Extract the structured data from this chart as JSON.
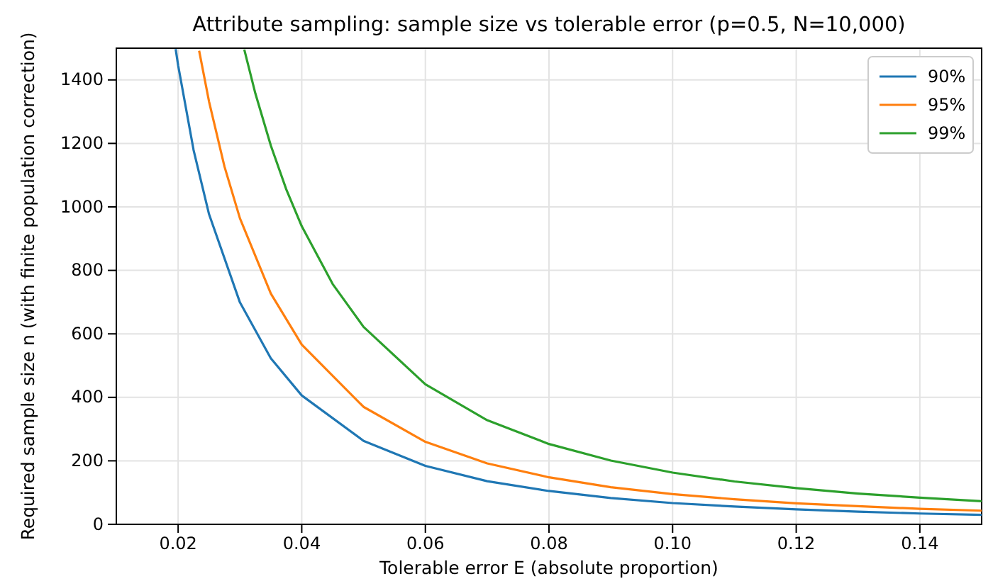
{
  "chart_data": {
    "type": "line",
    "title": "Attribute sampling: sample size vs tolerable error (p=0.5, N=10,000)",
    "xlabel": "Tolerable error E (absolute proportion)",
    "ylabel": "Required sample size n (with finite population correction)",
    "xlim": [
      0.01,
      0.15
    ],
    "ylim": [
      0,
      1500
    ],
    "xticks": [
      {
        "value": 0.02,
        "label": "0.02"
      },
      {
        "value": 0.04,
        "label": "0.04"
      },
      {
        "value": 0.06,
        "label": "0.06"
      },
      {
        "value": 0.08,
        "label": "0.08"
      },
      {
        "value": 0.1,
        "label": "0.10"
      },
      {
        "value": 0.12,
        "label": "0.12"
      },
      {
        "value": 0.14,
        "label": "0.14"
      }
    ],
    "yticks": [
      0,
      200,
      400,
      600,
      800,
      1000,
      1200,
      1400
    ],
    "grid": true,
    "legend": "top right",
    "marker": "none",
    "line_style": "solid",
    "series": [
      {
        "name": "90%",
        "color": "#1f77b4",
        "x": [
          0.0196,
          0.02,
          0.0225,
          0.025,
          0.03,
          0.035,
          0.04,
          0.05,
          0.06,
          0.07,
          0.08,
          0.09,
          0.1,
          0.11,
          0.12,
          0.13,
          0.14,
          0.15
        ],
        "values": [
          1497,
          1446,
          1179,
          977,
          699,
          523,
          406,
          263,
          184,
          136,
          105,
          83,
          67,
          56,
          47,
          40,
          34,
          30
        ]
      },
      {
        "name": "95%",
        "color": "#ff7f0e",
        "x": [
          0.0234,
          0.025,
          0.0275,
          0.03,
          0.035,
          0.04,
          0.05,
          0.06,
          0.07,
          0.08,
          0.09,
          0.1,
          0.11,
          0.12,
          0.13,
          0.14,
          0.15
        ],
        "values": [
          1492,
          1332,
          1127,
          964,
          727,
          566,
          370,
          260,
          192,
          148,
          117,
          95,
          79,
          66,
          57,
          49,
          43
        ]
      },
      {
        "name": "99%",
        "color": "#2ca02c",
        "x": [
          0.0307,
          0.0325,
          0.035,
          0.0375,
          0.04,
          0.045,
          0.05,
          0.06,
          0.07,
          0.08,
          0.09,
          0.1,
          0.11,
          0.12,
          0.13,
          0.14,
          0.15
        ],
        "values": [
          1496,
          1357,
          1193,
          1055,
          939,
          757,
          622,
          441,
          328,
          253,
          201,
          163,
          135,
          114,
          97,
          84,
          73
        ]
      }
    ]
  }
}
